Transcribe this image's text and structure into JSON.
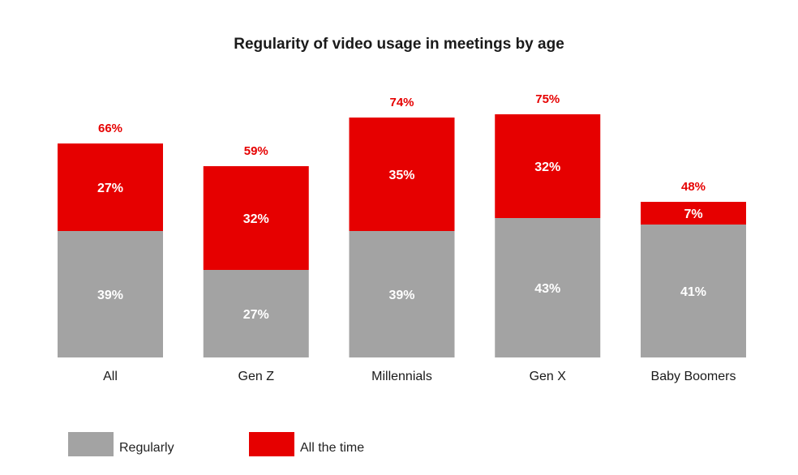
{
  "chart_data": {
    "type": "bar",
    "stacked": true,
    "title": "Regularity of video usage in meetings by age",
    "categories": [
      "All",
      "Gen Z",
      "Millennials",
      "Gen X",
      "Baby Boomers"
    ],
    "series": [
      {
        "name": "Regularly",
        "values": [
          39,
          27,
          39,
          43,
          41
        ],
        "labels": [
          "39%",
          "27%",
          "39%",
          "43%",
          "41%"
        ],
        "color": "#a3a3a3"
      },
      {
        "name": "All the time",
        "values": [
          27,
          32,
          35,
          32,
          7
        ],
        "labels": [
          "27%",
          "32%",
          "35%",
          "32%",
          "7%"
        ],
        "color": "#e60000"
      }
    ],
    "totals": [
      66,
      59,
      74,
      75,
      48
    ],
    "total_labels": [
      "66%",
      "59%",
      "74%",
      "75%",
      "48%"
    ],
    "total_label_color": "#e60000",
    "grid": false,
    "legend_position": "bottom-left"
  }
}
